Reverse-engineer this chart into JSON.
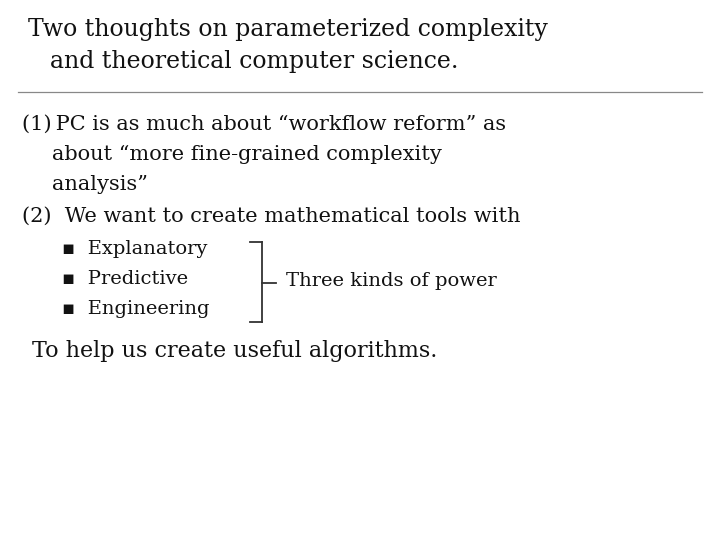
{
  "title_line1": "Two thoughts on parameterized complexity",
  "title_line2": "and theoretical computer science.",
  "point1_line1": "(1) PC is as much about “workflow reform” as",
  "point1_line2": "about “more fine-grained complexity",
  "point1_line3": "analysis”",
  "point2": "(2)  We want to create mathematical tools with",
  "bullet1": "Explanatory",
  "bullet2": "Predictive",
  "bullet3": "Engineering",
  "brace_label": "Three kinds of power",
  "footer": "To help us create useful algorithms.",
  "bg_color": "#ffffff",
  "text_color": "#111111",
  "line_color": "#888888",
  "bracket_color": "#333333",
  "title_fontsize": 17,
  "body_fontsize": 15,
  "bullet_fontsize": 14,
  "footer_fontsize": 16
}
